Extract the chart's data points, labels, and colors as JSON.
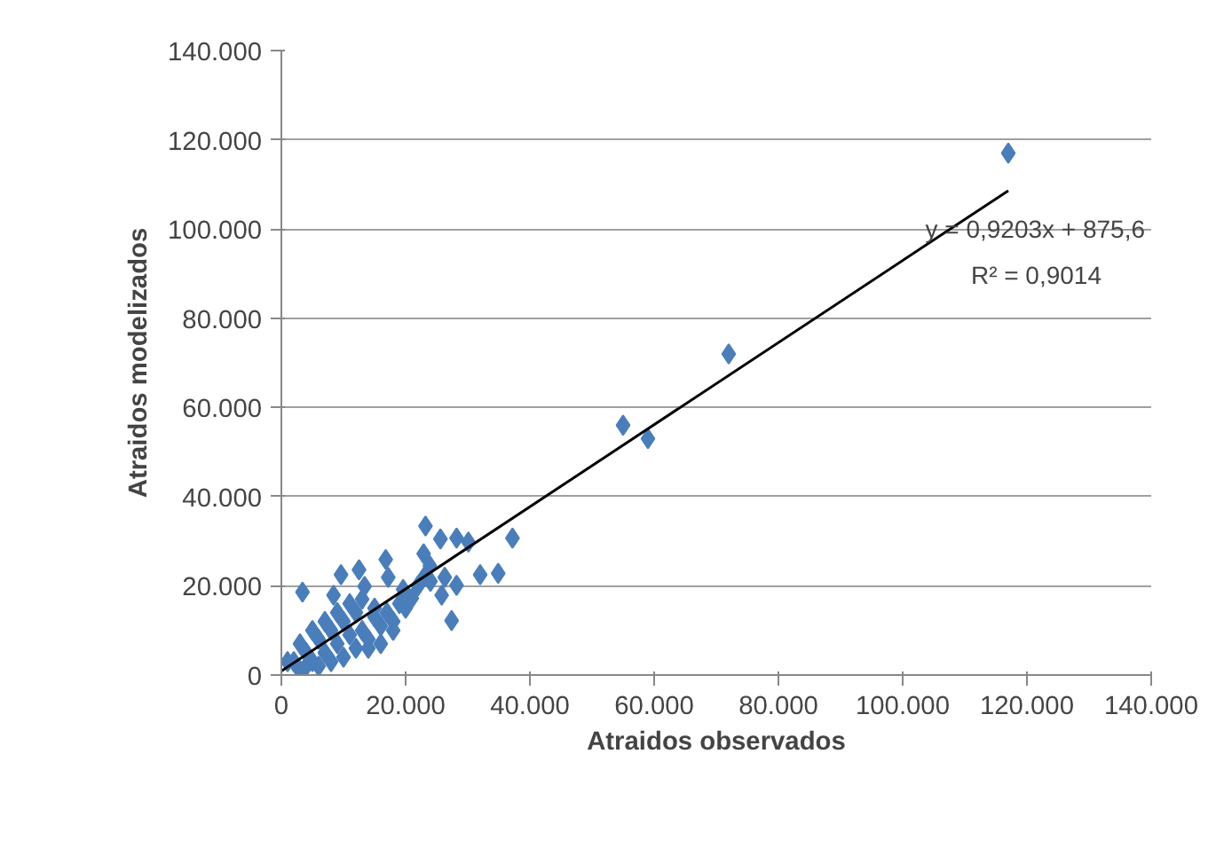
{
  "chart_data": {
    "type": "scatter",
    "xlabel": "Atraidos observados",
    "ylabel": "Atraidos modelizados",
    "xlim": [
      0,
      140000
    ],
    "ylim": [
      0,
      140000
    ],
    "xticks": [
      0,
      {
        "value": 20000,
        "label": "20.000"
      },
      {
        "value": 40000,
        "label": "40.000"
      },
      {
        "value": 60000,
        "label": "60.000"
      },
      {
        "value": 80000,
        "label": "80.000"
      },
      {
        "value": 100000,
        "label": "100.000"
      },
      {
        "value": 120000,
        "label": "120.000"
      },
      {
        "value": 140000,
        "label": "140.000"
      }
    ],
    "yticks": [
      0,
      {
        "value": 20000,
        "label": "20.000"
      },
      {
        "value": 40000,
        "label": "40.000"
      },
      {
        "value": 60000,
        "label": "60.000"
      },
      {
        "value": 80000,
        "label": "80.000"
      },
      {
        "value": 100000,
        "label": "100.000"
      },
      {
        "value": 120000,
        "label": "120.000"
      },
      {
        "value": 140000,
        "label": "140.000"
      }
    ],
    "grid": "y",
    "marker": "diamond",
    "annotations": [
      "y = 0,9203x + 875,6",
      "R² = 0,9014"
    ],
    "series": [
      {
        "color": "#4a7ebb",
        "x": [
          117000,
          72000,
          55000,
          59000,
          23200,
          25600,
          28200,
          30100,
          37200,
          22900,
          16800,
          12500,
          9600,
          17200,
          32000,
          34900,
          23900,
          26300,
          28200,
          25800,
          27400,
          3400,
          8400,
          13400,
          19600,
          21000,
          2000,
          3000,
          4000,
          5000,
          6000,
          7000,
          8000,
          9000,
          10000,
          11000,
          12000,
          13000,
          14000,
          15000,
          16000,
          17000,
          18000,
          19000,
          20000,
          22000,
          6000,
          8000,
          10000,
          12000,
          14000,
          3000,
          5000,
          7000,
          9000,
          11000,
          13000,
          15000,
          4000,
          1000,
          18000,
          16000,
          23000,
          24000
        ],
        "values": [
          117000,
          72000,
          56000,
          53000,
          33400,
          30500,
          30700,
          29800,
          30700,
          27200,
          25900,
          23600,
          22500,
          21900,
          22500,
          22800,
          24500,
          21900,
          20100,
          17900,
          12200,
          18600,
          17900,
          19900,
          19200,
          17200,
          3000,
          1000,
          5000,
          3000,
          8000,
          5000,
          10000,
          7000,
          12000,
          9000,
          14000,
          10000,
          8000,
          13000,
          11000,
          14000,
          12000,
          16000,
          15000,
          20000,
          2000,
          3000,
          4000,
          6000,
          6000,
          7000,
          10000,
          12000,
          14000,
          16000,
          17000,
          15000,
          2000,
          3000,
          10000,
          7000,
          22000,
          21000
        ]
      },
      {
        "type": "line",
        "color": "#000000",
        "marker": "none",
        "x": [
          0,
          117000
        ],
        "values": [
          900,
          108600
        ]
      }
    ]
  }
}
